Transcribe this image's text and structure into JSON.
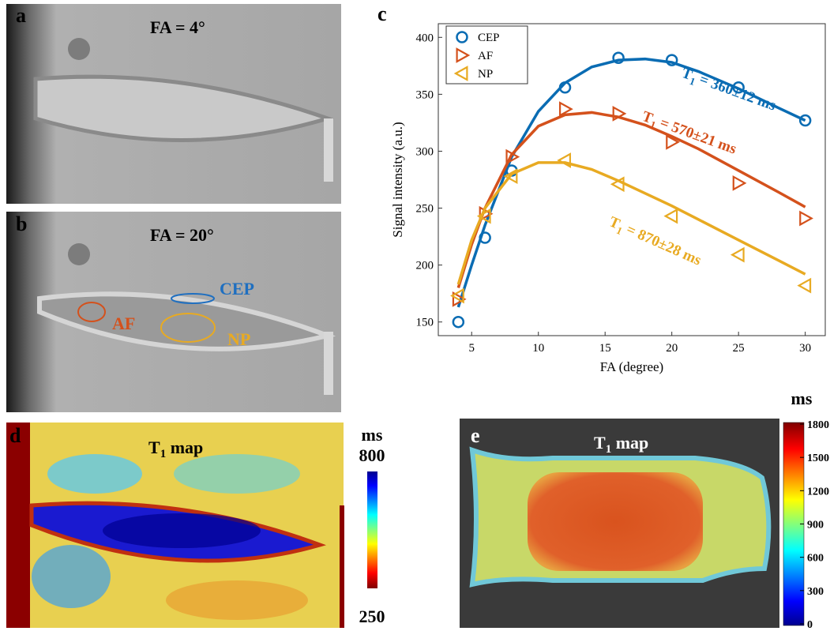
{
  "panels": {
    "a": {
      "label": "a",
      "title": "FA = 4°"
    },
    "b": {
      "label": "b",
      "title": "FA = 20°",
      "rois": [
        "CEP",
        "AF",
        "NP"
      ]
    },
    "d": {
      "label": "d",
      "title": {
        "main": "T",
        "sub": "1",
        "rest": " map"
      },
      "colorbar": {
        "unit": "ms",
        "max": 800,
        "min": 250
      }
    },
    "e": {
      "label": "e",
      "title": {
        "main": "T",
        "sub": "1",
        "rest": " map"
      },
      "colorbar": {
        "unit": "ms",
        "lim": [
          0,
          1800
        ],
        "ticks": [
          0,
          300,
          600,
          900,
          1200,
          1500,
          1800
        ]
      }
    }
  },
  "chart_data": {
    "type": "scatter",
    "panel_label": "c",
    "x_label": "FA (degree)",
    "y_label": "Signal intensity (a.u.)",
    "x": [
      4,
      6,
      8,
      12,
      16,
      20,
      25,
      30
    ],
    "fit_x": [
      4,
      5,
      6,
      8,
      10,
      12,
      14,
      16,
      18,
      20,
      22,
      25,
      28,
      30
    ],
    "series": [
      {
        "name": "CEP",
        "color": "#0a6cb3",
        "marker": "o",
        "values": [
          150,
          224,
          283,
          356,
          382,
          380,
          356,
          327
        ],
        "fit": [
          163,
          200,
          235,
          295,
          335,
          360,
          374,
          380,
          381,
          378,
          370,
          355,
          338,
          327
        ],
        "annotation": {
          "main": "T",
          "sub": "1",
          "rest": " = 360±12 ms"
        }
      },
      {
        "name": "AF",
        "color": "#d4511c",
        "marker": ">",
        "values": [
          170,
          245,
          295,
          337,
          333,
          308,
          272,
          241
        ],
        "fit": [
          180,
          218,
          250,
          297,
          322,
          332,
          334,
          330,
          323,
          313,
          302,
          283,
          264,
          251
        ],
        "annotation": {
          "main": "T",
          "sub": "1",
          "rest": " = 570±21 ms"
        }
      },
      {
        "name": "NP",
        "color": "#e8aa22",
        "marker": "<",
        "values": [
          173,
          243,
          278,
          292,
          271,
          243,
          209,
          182
        ],
        "fit": [
          183,
          222,
          250,
          280,
          290,
          290,
          284,
          274,
          263,
          252,
          240,
          222,
          204,
          192
        ],
        "annotation": {
          "main": "T",
          "sub": "1",
          "rest": " = 870±28 ms"
        }
      }
    ],
    "xlim": [
      2.5,
      31.5
    ],
    "xticks": [
      5,
      10,
      15,
      20,
      25,
      30
    ],
    "ylim": [
      138,
      412
    ],
    "yticks": [
      150,
      200,
      250,
      300,
      350,
      400
    ],
    "legend": "upper left",
    "grid": false
  }
}
